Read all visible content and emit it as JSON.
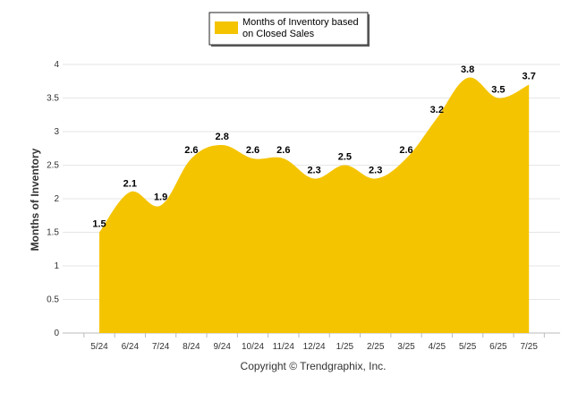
{
  "chart_data": {
    "type": "area",
    "categories": [
      "5/24",
      "6/24",
      "7/24",
      "8/24",
      "9/24",
      "10/24",
      "11/24",
      "12/24",
      "1/25",
      "2/25",
      "3/25",
      "4/25",
      "5/25",
      "6/25",
      "7/25"
    ],
    "series": [
      {
        "name": "Months of Inventory based on Closed Sales",
        "values": [
          1.5,
          2.1,
          1.9,
          2.6,
          2.8,
          2.6,
          2.6,
          2.3,
          2.5,
          2.3,
          2.6,
          3.2,
          3.8,
          3.5,
          3.7
        ],
        "data_labels": [
          "1.5",
          "2.1",
          "1.9",
          "2.6",
          "2.8",
          "2.6",
          "2.6",
          "2.3",
          "2.5",
          "2.3",
          "2.6",
          "3.2",
          "3.8",
          "3.5",
          "3.7"
        ],
        "color": "#F5C400"
      }
    ],
    "ylabel": "Months of Inventory",
    "xlabel": "",
    "ylim": [
      0,
      4
    ],
    "yticks": [
      "0",
      "0.5",
      "1",
      "1.5",
      "2",
      "2.5",
      "3",
      "3.5",
      "4"
    ],
    "grid": true,
    "legend": {
      "placement": "top-center",
      "lines": [
        "Months of Inventory based",
        "on Closed Sales"
      ]
    }
  },
  "footer": {
    "copyright": "Copyright © Trendgraphix, Inc."
  }
}
